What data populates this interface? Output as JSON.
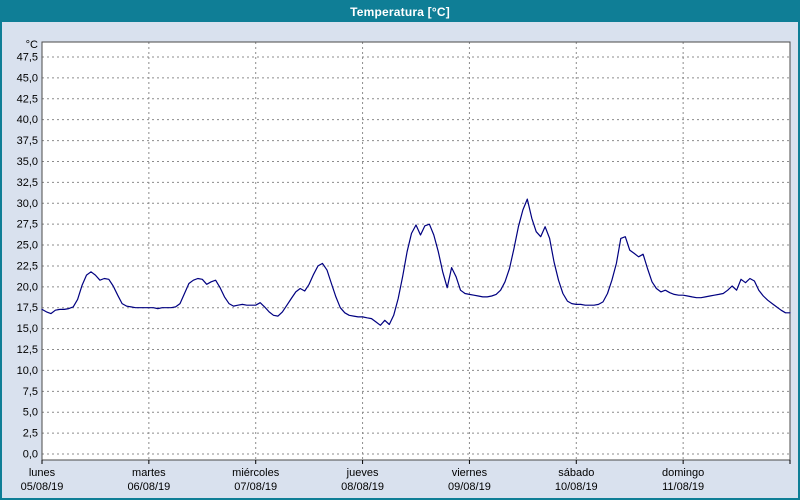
{
  "window": {
    "title": "Temperatura [°C]"
  },
  "colors": {
    "titlebar": "#0f7e96",
    "frame": "#0f7e96",
    "panel_bg": "#d9e1ee",
    "plot_bg": "#ffffff",
    "grid": "#8c8c8c",
    "plot_border": "#4a4a4a",
    "line": "#000080",
    "text": "#000000"
  },
  "y_axis": {
    "unit": "°C",
    "min": 0,
    "max": 47.5,
    "step": 2.5,
    "tick_labels": [
      "0,0",
      "2,5",
      "5,0",
      "7,5",
      "10,0",
      "12,5",
      "15,0",
      "17,5",
      "20,0",
      "22,5",
      "25,0",
      "27,5",
      "30,0",
      "32,5",
      "35,0",
      "37,5",
      "40,0",
      "42,5",
      "45,0",
      "47,5"
    ]
  },
  "x_axis": {
    "days": [
      {
        "name": "lunes",
        "date": "05/08/19"
      },
      {
        "name": "martes",
        "date": "06/08/19"
      },
      {
        "name": "miércoles",
        "date": "07/08/19"
      },
      {
        "name": "jueves",
        "date": "08/08/19"
      },
      {
        "name": "viernes",
        "date": "09/08/19"
      },
      {
        "name": "sábado",
        "date": "10/08/19"
      },
      {
        "name": "domingo",
        "date": "11/08/19"
      }
    ]
  },
  "chart_data": {
    "type": "line",
    "title": "Temperatura [°C]",
    "ylabel": "°C",
    "ylim": [
      0,
      47.5
    ],
    "x_unit": "hours",
    "x_range": [
      0,
      168
    ],
    "grid": "dashed",
    "legend": "none",
    "series": [
      {
        "name": "Temperatura",
        "color": "#000080",
        "sampling": "hourly",
        "values": [
          17.3,
          17.0,
          16.8,
          17.2,
          17.3,
          17.3,
          17.4,
          17.6,
          18.5,
          20.2,
          21.4,
          21.8,
          21.4,
          20.8,
          21.0,
          20.9,
          20.1,
          19.0,
          18.0,
          17.7,
          17.6,
          17.5,
          17.5,
          17.5,
          17.5,
          17.5,
          17.4,
          17.5,
          17.5,
          17.5,
          17.6,
          18.0,
          19.2,
          20.4,
          20.8,
          21.0,
          20.9,
          20.3,
          20.6,
          20.8,
          19.9,
          18.8,
          18.0,
          17.7,
          17.8,
          17.9,
          17.8,
          17.8,
          17.8,
          18.1,
          17.6,
          17.0,
          16.6,
          16.5,
          17.0,
          17.8,
          18.6,
          19.4,
          19.8,
          19.5,
          20.3,
          21.5,
          22.5,
          22.8,
          22.0,
          20.4,
          18.8,
          17.5,
          16.9,
          16.6,
          16.5,
          16.4,
          16.4,
          16.3,
          16.2,
          15.8,
          15.4,
          16.0,
          15.5,
          16.6,
          18.6,
          21.2,
          24.2,
          26.4,
          27.4,
          26.2,
          27.3,
          27.5,
          26.2,
          24.2,
          21.8,
          19.9,
          22.3,
          21.2,
          19.6,
          19.2,
          19.1,
          19.0,
          18.9,
          18.8,
          18.8,
          18.9,
          19.1,
          19.6,
          20.6,
          22.2,
          24.6,
          27.2,
          29.2,
          30.5,
          28.2,
          26.6,
          26.0,
          27.2,
          25.8,
          23.0,
          20.8,
          19.2,
          18.3,
          18.0,
          17.9,
          17.9,
          17.8,
          17.8,
          17.8,
          17.9,
          18.2,
          19.2,
          20.8,
          22.8,
          25.8,
          26.0,
          24.4,
          24.0,
          23.6,
          23.9,
          22.2,
          20.6,
          19.8,
          19.4,
          19.6,
          19.3,
          19.1,
          19.0,
          19.0,
          18.9,
          18.8,
          18.7,
          18.7,
          18.8,
          18.9,
          19.0,
          19.1,
          19.2,
          19.6,
          20.1,
          19.6,
          20.9,
          20.5,
          21.0,
          20.7,
          19.6,
          18.9,
          18.4,
          18.0,
          17.6,
          17.2,
          16.9
        ]
      }
    ]
  }
}
